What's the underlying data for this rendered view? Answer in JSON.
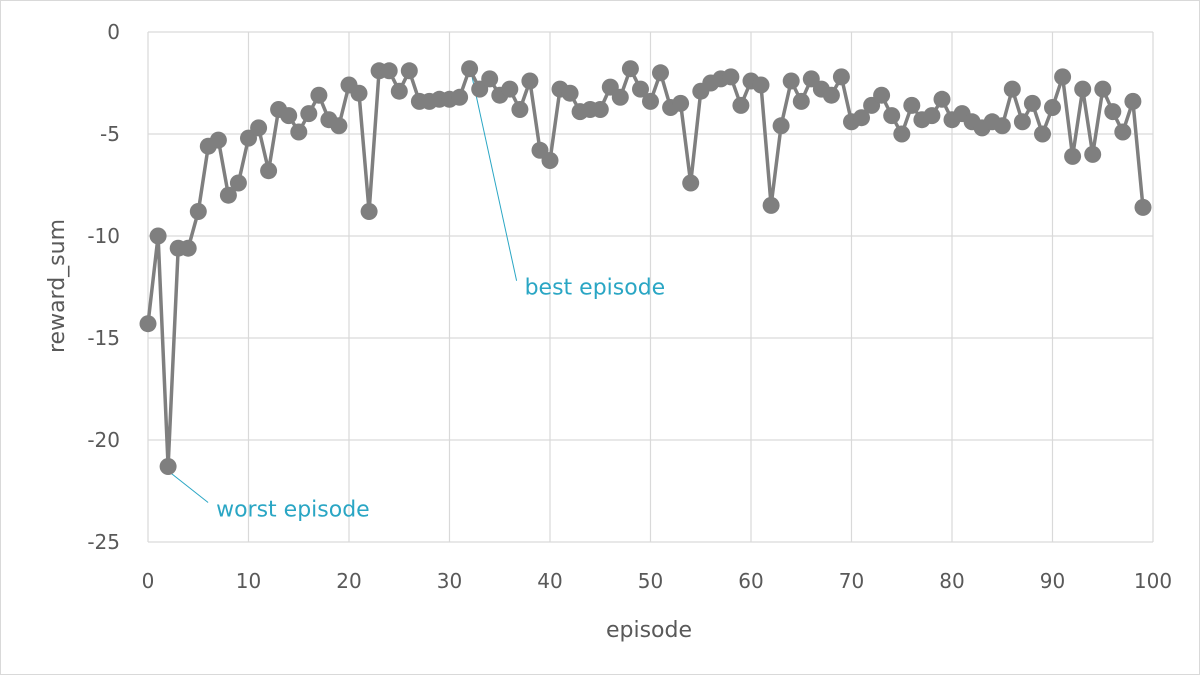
{
  "chart_data": {
    "type": "line",
    "xlabel": "episode",
    "ylabel": "reward_sum",
    "xlim": [
      0,
      100
    ],
    "ylim": [
      -25,
      0
    ],
    "xticks": [
      0,
      10,
      20,
      30,
      40,
      50,
      60,
      70,
      80,
      90,
      100
    ],
    "yticks": [
      0,
      -5,
      -10,
      -15,
      -20,
      -25
    ],
    "grid": true,
    "series_color": "#7f7f7f",
    "annotation_color": "#2aa6c4",
    "series": [
      {
        "x": [
          0,
          1,
          2,
          3,
          4,
          5,
          6,
          7,
          8,
          9,
          10,
          11,
          12,
          13,
          14,
          15,
          16,
          17,
          18,
          19,
          20,
          21,
          22,
          23,
          24,
          25,
          26,
          27,
          28,
          29,
          30,
          31,
          32,
          33,
          34,
          35,
          36,
          37,
          38,
          39,
          40,
          41,
          42,
          43,
          44,
          45,
          46,
          47,
          48,
          49,
          50,
          51,
          52,
          53,
          54,
          55,
          56,
          57,
          58,
          59,
          60,
          61,
          62,
          63,
          64,
          65,
          66,
          67,
          68,
          69,
          70,
          71,
          72,
          73,
          74,
          75,
          76,
          77,
          78,
          79,
          80,
          81,
          82,
          83,
          84,
          85,
          86,
          87,
          88,
          89,
          90,
          91,
          92,
          93,
          94,
          95,
          96,
          97,
          98,
          99
        ],
        "values": [
          -14.3,
          -10.0,
          -21.3,
          -10.6,
          -10.6,
          -8.8,
          -5.6,
          -5.3,
          -8.0,
          -7.4,
          -5.2,
          -4.7,
          -6.8,
          -3.8,
          -4.1,
          -4.9,
          -4.0,
          -3.1,
          -4.3,
          -4.6,
          -2.6,
          -3.0,
          -8.8,
          -1.9,
          -1.9,
          -2.9,
          -1.9,
          -3.4,
          -3.4,
          -3.3,
          -3.3,
          -3.2,
          -1.8,
          -2.8,
          -2.3,
          -3.1,
          -2.8,
          -3.8,
          -2.4,
          -5.8,
          -6.3,
          -2.8,
          -3.0,
          -3.9,
          -3.8,
          -3.8,
          -2.7,
          -3.2,
          -1.8,
          -2.8,
          -3.4,
          -2.0,
          -3.7,
          -3.5,
          -7.4,
          -2.9,
          -2.5,
          -2.3,
          -2.2,
          -3.6,
          -2.4,
          -2.6,
          -8.5,
          -4.6,
          -2.4,
          -3.4,
          -2.3,
          -2.8,
          -3.1,
          -2.2,
          -4.4,
          -4.2,
          -3.6,
          -3.1,
          -4.1,
          -5.0,
          -3.6,
          -4.3,
          -4.1,
          -3.3,
          -4.3,
          -4.0,
          -4.4,
          -4.7,
          -4.4,
          -4.6,
          -2.8,
          -4.4,
          -3.5,
          -5.0,
          -3.7,
          -2.2,
          -6.1,
          -2.8,
          -6.0,
          -2.8,
          -3.9,
          -4.9,
          -3.4,
          -8.6
        ]
      }
    ],
    "annotations": [
      {
        "text": "worst episode",
        "x": 2,
        "y": -21.3
      },
      {
        "text": "best episode",
        "x": 32,
        "y": -1.8
      }
    ]
  }
}
